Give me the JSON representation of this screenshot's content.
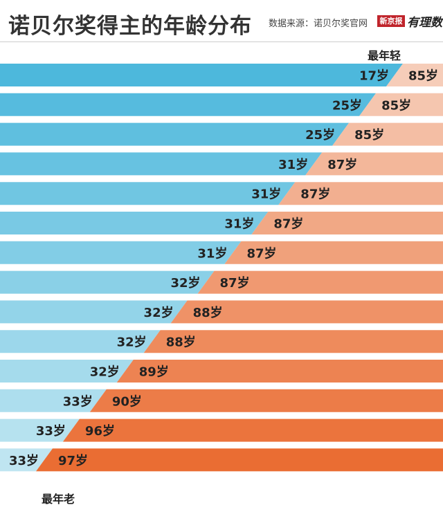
{
  "header": {
    "title": "诺贝尔奖得主的年龄分布",
    "source": "数据来源：诺贝尔奖官网",
    "logo_text": "新京报",
    "logo_script": "有理数"
  },
  "colors": {
    "young_start": "#4db8dc",
    "young_end": "#bfe5f1",
    "old_start": "#f6cdb9",
    "old_end": "#ea6d33",
    "text": "#222222"
  },
  "chart_data": {
    "type": "bar",
    "title": "诺贝尔奖得主的年龄分布",
    "label_top": "最年轻",
    "label_bottom": "最年老",
    "unit": "岁",
    "age_range": [
      0,
      100
    ],
    "rows": [
      {
        "youngest": 17,
        "oldest": 85
      },
      {
        "youngest": 25,
        "oldest": 85
      },
      {
        "youngest": 25,
        "oldest": 85
      },
      {
        "youngest": 31,
        "oldest": 87
      },
      {
        "youngest": 31,
        "oldest": 87
      },
      {
        "youngest": 31,
        "oldest": 87
      },
      {
        "youngest": 31,
        "oldest": 87
      },
      {
        "youngest": 32,
        "oldest": 87
      },
      {
        "youngest": 32,
        "oldest": 88
      },
      {
        "youngest": 32,
        "oldest": 88
      },
      {
        "youngest": 32,
        "oldest": 89
      },
      {
        "youngest": 33,
        "oldest": 90
      },
      {
        "youngest": 33,
        "oldest": 96
      },
      {
        "youngest": 33,
        "oldest": 97
      }
    ]
  }
}
